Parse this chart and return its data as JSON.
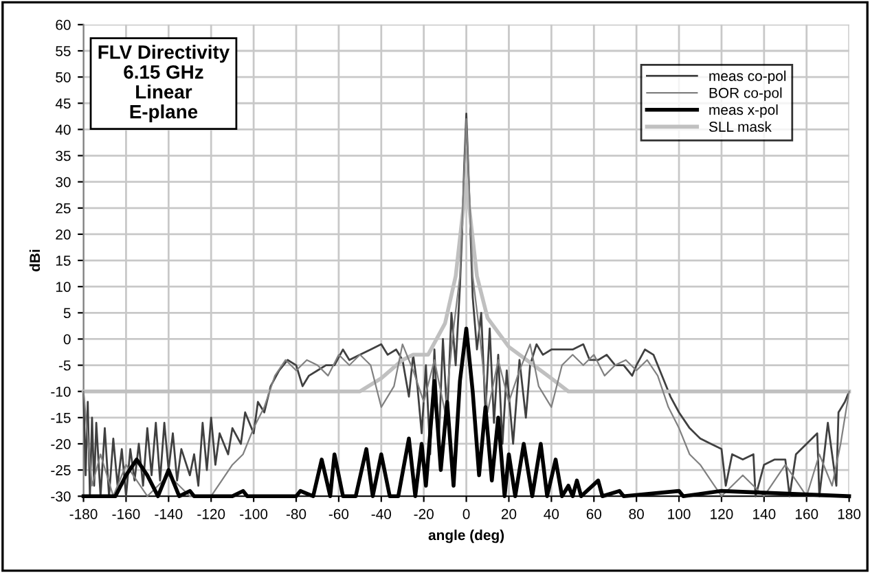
{
  "chart_data": {
    "type": "line",
    "title": "FLV Directivity\n6.15 GHz\nLinear\nE-plane",
    "xlabel": "angle (deg)",
    "ylabel": "dBi",
    "xlim": [
      -180,
      180
    ],
    "xticks": [
      -180,
      -160,
      -140,
      -120,
      -100,
      -80,
      -60,
      -40,
      -20,
      0,
      20,
      40,
      60,
      80,
      100,
      120,
      140,
      160,
      180
    ],
    "ylim": [
      -30,
      60
    ],
    "yticks": [
      -30,
      -25,
      -20,
      -15,
      -10,
      -5,
      0,
      5,
      10,
      15,
      20,
      25,
      30,
      35,
      40,
      45,
      50,
      55,
      60
    ],
    "grid": true,
    "legend": "top right",
    "marker": "none",
    "line_style": "solid",
    "series": [
      {
        "name": "meas co-pol",
        "color": "#404040",
        "x": [
          -180,
          -179,
          -178,
          -177,
          -176,
          -175,
          -174,
          -172,
          -170,
          -168,
          -166,
          -164,
          -162,
          -160,
          -158,
          -156,
          -154,
          -152,
          -150,
          -148,
          -146,
          -144,
          -142,
          -140,
          -138,
          -136,
          -134,
          -130,
          -128,
          -126,
          -124,
          -122,
          -120,
          -118,
          -116,
          -112,
          -110,
          -106,
          -104,
          -100,
          -98,
          -95,
          -92,
          -88,
          -84,
          -80,
          -77,
          -74,
          -70,
          -66,
          -62,
          -58,
          -55,
          -50,
          -45,
          -40,
          -37,
          -33,
          -30,
          -27,
          -25,
          -23,
          -21,
          -19,
          -17,
          -15,
          -13,
          -11,
          -9,
          -7,
          -5,
          -3,
          -2,
          -1,
          0,
          1,
          2,
          3,
          5,
          7,
          9,
          11,
          13,
          15,
          17,
          19,
          22,
          25,
          28,
          30,
          33,
          36,
          40,
          45,
          50,
          55,
          58,
          62,
          66,
          70,
          74,
          78,
          80,
          84,
          88,
          92,
          96,
          100,
          105,
          110,
          115,
          120,
          122,
          125,
          130,
          135,
          136,
          140,
          145,
          150,
          152,
          155,
          160,
          165,
          166,
          170,
          174,
          175,
          178,
          180
        ],
        "values": [
          -10,
          -26,
          -12,
          -30,
          -15,
          -28,
          -16,
          -30,
          -17,
          -30,
          -19,
          -28,
          -21,
          -30,
          -21,
          -27,
          -20,
          -28,
          -17,
          -26,
          -16,
          -27,
          -16,
          -25,
          -18,
          -27,
          -21,
          -26,
          -22,
          -28,
          -16,
          -25,
          -15,
          -24,
          -18,
          -22,
          -17,
          -20,
          -14,
          -18,
          -12,
          -14,
          -9,
          -6,
          -4,
          -5,
          -9,
          -7,
          -6,
          -5,
          -5,
          -2,
          -4,
          -3,
          -2,
          -1,
          -3,
          -2,
          -4,
          -11,
          -3,
          -9,
          -18,
          -5,
          -22,
          -2,
          -20,
          0,
          -15,
          5,
          -5,
          10,
          20,
          33,
          43,
          32,
          20,
          8,
          -2,
          5,
          -14,
          2,
          -16,
          -3,
          -20,
          -6,
          -20,
          -4,
          -15,
          -5,
          -1,
          -3,
          -2,
          -2,
          -2,
          -1,
          -4,
          -4,
          -3,
          -5,
          -5,
          -7,
          -5,
          -2,
          -3,
          -7,
          -11,
          -14,
          -17,
          -19,
          -20,
          -21,
          -28,
          -22,
          -23,
          -22,
          -30,
          -24,
          -23,
          -23,
          -30,
          -22,
          -20,
          -18,
          -30,
          -16,
          -28,
          -14,
          -12,
          -10
        ]
      },
      {
        "name": "BOR co-pol",
        "color": "#808080",
        "x": [
          -180,
          -176,
          -172,
          -166,
          -160,
          -150,
          -140,
          -130,
          -120,
          -115,
          -110,
          -105,
          -100,
          -95,
          -90,
          -85,
          -80,
          -75,
          -70,
          -65,
          -60,
          -55,
          -50,
          -45,
          -40,
          -34,
          -30,
          -25,
          -20,
          -15,
          -10,
          -6,
          -3,
          -1,
          0,
          1,
          3,
          6,
          10,
          15,
          20,
          25,
          30,
          34,
          40,
          45,
          50,
          55,
          60,
          65,
          70,
          75,
          80,
          85,
          90,
          95,
          100,
          105,
          110,
          115,
          120,
          130,
          140,
          150,
          160,
          166,
          172,
          176,
          180
        ],
        "values": [
          -10,
          -28,
          -22,
          -30,
          -24,
          -30,
          -26,
          -30,
          -30,
          -27,
          -24,
          -22,
          -17,
          -13,
          -7,
          -4,
          -6,
          -4,
          -5,
          -7,
          -3,
          -5,
          -3,
          -5,
          -13,
          -9,
          -1,
          -6,
          -12,
          -4,
          -14,
          2,
          12,
          32,
          42,
          32,
          12,
          2,
          -14,
          -4,
          -12,
          -6,
          -1,
          -9,
          -13,
          -5,
          -3,
          -5,
          -3,
          -7,
          -5,
          -4,
          -6,
          -4,
          -7,
          -13,
          -17,
          -22,
          -24,
          -27,
          -30,
          -26,
          -30,
          -24,
          -30,
          -22,
          -28,
          -20,
          -10
        ]
      },
      {
        "name": "meas x-pol",
        "color": "#000000",
        "x": [
          -180,
          -165,
          -160,
          -155,
          -150,
          -145,
          -140,
          -135,
          -130,
          -128,
          -110,
          -105,
          -103,
          -80,
          -78,
          -72,
          -68,
          -64,
          -62,
          -58,
          -52,
          -47,
          -44,
          -40,
          -36,
          -32,
          -27,
          -24,
          -21,
          -19,
          -15,
          -12,
          -9,
          -6,
          -3,
          0,
          3,
          6,
          9,
          12,
          15,
          18,
          20,
          23,
          27,
          31,
          35,
          38,
          42,
          45,
          48,
          50,
          52,
          54,
          62,
          64,
          72,
          74,
          100,
          102,
          120,
          180
        ],
        "values": [
          -30,
          -30,
          -26,
          -23,
          -26,
          -30,
          -25,
          -30,
          -29,
          -30,
          -30,
          -29,
          -30,
          -30,
          -29,
          -30,
          -23,
          -30,
          -22,
          -30,
          -30,
          -21,
          -30,
          -22,
          -30,
          -30,
          -19,
          -30,
          -20,
          -28,
          -8,
          -25,
          -12,
          -28,
          -8,
          2,
          -10,
          -26,
          -13,
          -27,
          -15,
          -30,
          -22,
          -30,
          -20,
          -30,
          -20,
          -30,
          -23,
          -30,
          -28,
          -30,
          -27,
          -30,
          -27,
          -30,
          -29,
          -30,
          -29,
          -30,
          -29,
          -30
        ]
      },
      {
        "name": "SLL mask",
        "color": "#c0c0c0",
        "x": [
          -180,
          -50,
          -40,
          -30,
          -25,
          -18,
          -10,
          -5,
          0,
          5,
          10,
          20,
          30,
          40,
          48,
          180
        ],
        "values": [
          -10,
          -10,
          -7.5,
          -4,
          -3,
          -3,
          3,
          12,
          30,
          12,
          4,
          -1.5,
          -4.5,
          -7.5,
          -10,
          -10
        ]
      }
    ]
  }
}
